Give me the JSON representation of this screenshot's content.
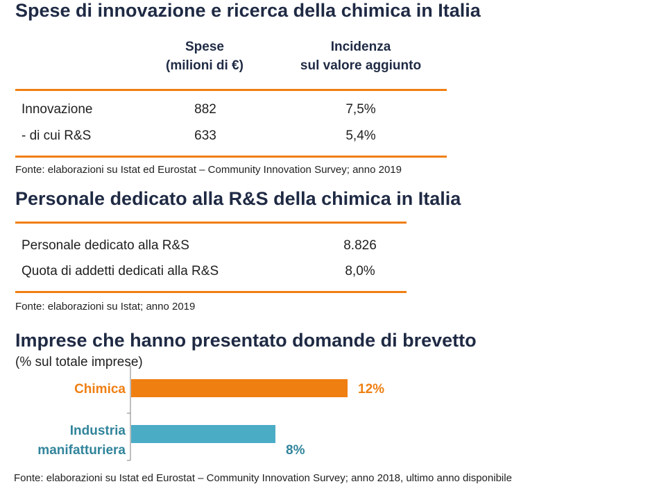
{
  "section1": {
    "title": "Spese di innovazione e ricerca della chimica in Italia",
    "col1_header_line1": "Spese",
    "col1_header_line2": "(milioni di €)",
    "col2_header_line1": "Incidenza",
    "col2_header_line2": "sul valore aggiunto",
    "rows": [
      {
        "label": "Innovazione",
        "spese": "882",
        "incidenza": "7,5%"
      },
      {
        "label": "- di cui R&S",
        "spese": "633",
        "incidenza": "5,4%"
      }
    ],
    "source": "Fonte: elaborazioni su Istat ed Eurostat – Community Innovation Survey; anno 2019"
  },
  "section2": {
    "title": "Personale dedicato alla R&S della chimica in Italia",
    "rows": [
      {
        "label": "Personale dedicato alla R&S",
        "value": "8.826"
      },
      {
        "label": "Quota di addetti dedicati alla R&S",
        "value": "8,0%"
      }
    ],
    "source": "Fonte: elaborazioni su Istat; anno 2019"
  },
  "section3": {
    "title": "Imprese che hanno presentato domande di brevetto",
    "subtitle": "(% sul totale imprese)",
    "source": "Fonte: elaborazioni su Istat ed Eurostat – Community Innovation Survey; anno 2018, ultimo anno disponibile"
  },
  "colors": {
    "accent_orange": "#f07f12",
    "bar_chimica": "#f07f12",
    "bar_industria": "#4bacc6",
    "label_chimica": "#f07f12",
    "label_industria": "#31849b"
  },
  "chart_data": {
    "type": "bar",
    "orientation": "horizontal",
    "title": "Imprese che hanno presentato domande di brevetto",
    "subtitle": "(% sul totale imprese)",
    "categories": [
      "Chimica",
      "Industria manifatturiera"
    ],
    "category_lines": [
      [
        "Chimica"
      ],
      [
        "Industria",
        "manifatturiera"
      ]
    ],
    "values": [
      12,
      8
    ],
    "data_labels": [
      "12%",
      "8%"
    ],
    "xlim": [
      0,
      14
    ],
    "grid": false,
    "legend": "none"
  }
}
